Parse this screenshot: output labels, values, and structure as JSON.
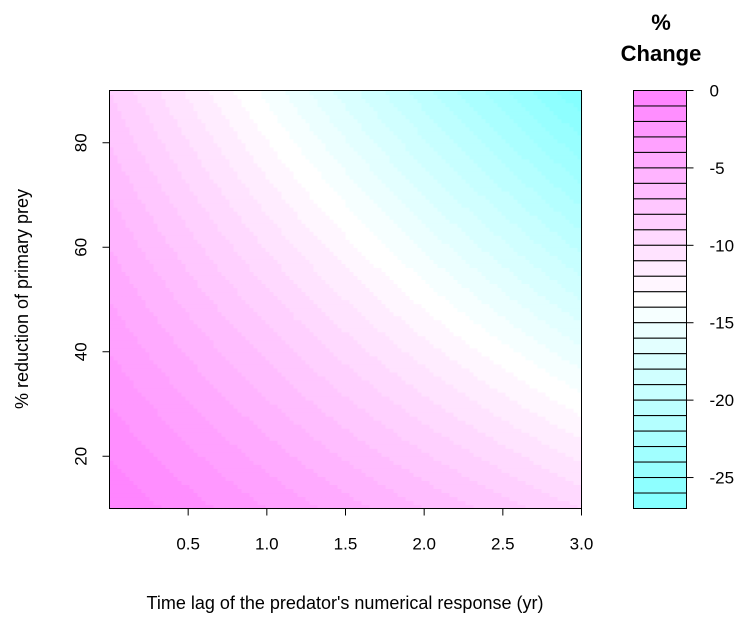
{
  "chart_data": {
    "type": "heatmap",
    "title": "",
    "xlabel": "Time lag of the predator's numerical response (yr)",
    "ylabel": "% reduction of primary prey",
    "xlim": [
      0,
      3.0
    ],
    "ylim": [
      10,
      90
    ],
    "x_ticks": [
      0.5,
      1.0,
      1.5,
      2.0,
      2.5,
      3.0
    ],
    "x_tick_labels": [
      "0.5",
      "1.0",
      "1.5",
      "2.0",
      "2.5",
      "3.0"
    ],
    "y_ticks": [
      20,
      40,
      60,
      80
    ],
    "y_tick_labels": [
      "20",
      "40",
      "60",
      "80"
    ],
    "z_label": "% Change",
    "z_range": [
      -27,
      0
    ],
    "z_level_step": 1,
    "color_scale": {
      "high": "#ff80ff",
      "middle": "#ffffff",
      "low": "#80ffff"
    },
    "legend": {
      "title_line1": "%",
      "title_line2": "Change",
      "position": "right",
      "ticks": [
        0,
        -5,
        -10,
        -15,
        -20,
        -25
      ],
      "tick_labels": [
        "0",
        "-5",
        "-10",
        "-15",
        "-20",
        "-25"
      ]
    },
    "corner_values": {
      "x0_y10": 0,
      "x3_y10": -9,
      "x0_y90": -8,
      "x3_y90": -27
    }
  }
}
